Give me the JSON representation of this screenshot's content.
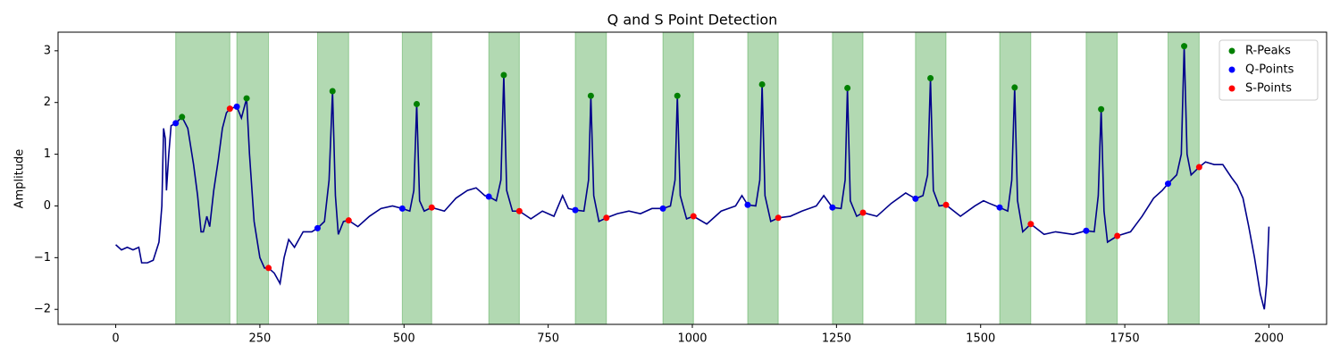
{
  "chart_data": {
    "type": "line",
    "title": "Q and S Point Detection",
    "ylabel": "Amplitude",
    "color": "#00008b",
    "x": [
      0,
      10,
      20,
      30,
      40,
      45,
      55,
      65,
      75,
      80,
      83,
      86,
      88,
      92,
      96,
      104,
      115,
      125,
      135,
      142,
      148,
      152,
      158,
      163,
      170,
      178,
      185,
      192,
      198,
      210,
      218,
      227,
      232,
      240,
      250,
      258,
      265,
      275,
      285,
      292,
      300,
      310,
      325,
      340,
      350,
      362,
      370,
      376,
      381,
      386,
      395,
      404,
      420,
      440,
      460,
      480,
      497,
      510,
      517,
      522,
      527,
      535,
      548,
      570,
      590,
      610,
      625,
      640,
      647,
      660,
      668,
      673,
      678,
      688,
      700,
      720,
      740,
      760,
      775,
      785,
      797,
      812,
      820,
      824,
      829,
      838,
      851,
      870,
      890,
      910,
      930,
      949,
      962,
      970,
      974,
      979,
      990,
      1002,
      1025,
      1050,
      1075,
      1086,
      1096,
      1110,
      1117,
      1121,
      1126,
      1136,
      1149,
      1170,
      1190,
      1215,
      1228,
      1243,
      1258,
      1265,
      1269,
      1274,
      1285,
      1296,
      1320,
      1345,
      1370,
      1387,
      1400,
      1408,
      1413,
      1418,
      1428,
      1440,
      1465,
      1490,
      1505,
      1515,
      1533,
      1547,
      1554,
      1559,
      1564,
      1573,
      1587,
      1610,
      1630,
      1660,
      1683,
      1697,
      1704,
      1709,
      1714,
      1720,
      1737,
      1760,
      1780,
      1800,
      1815,
      1825,
      1840,
      1848,
      1853,
      1858,
      1865,
      1879,
      1890,
      1905,
      1920,
      1935,
      1945,
      1955,
      1965,
      1975,
      1985,
      1992,
      1996,
      2000
    ],
    "values": [
      -0.75,
      -0.85,
      -0.8,
      -0.85,
      -0.8,
      -1.1,
      -1.1,
      -1.05,
      -0.7,
      0,
      1.5,
      1.3,
      0.3,
      1.0,
      1.55,
      1.6,
      1.72,
      1.5,
      0.8,
      0.2,
      -0.5,
      -0.5,
      -0.2,
      -0.4,
      0.3,
      0.9,
      1.5,
      1.8,
      1.88,
      1.92,
      1.7,
      2.08,
      1.0,
      -0.3,
      -1.0,
      -1.2,
      -1.2,
      -1.3,
      -1.5,
      -1.0,
      -0.65,
      -0.8,
      -0.5,
      -0.5,
      -0.43,
      -0.3,
      0.5,
      2.22,
      0.2,
      -0.55,
      -0.3,
      -0.28,
      -0.4,
      -0.2,
      -0.05,
      0.0,
      -0.05,
      -0.1,
      0.3,
      1.97,
      0.1,
      -0.1,
      -0.03,
      -0.1,
      0.15,
      0.3,
      0.35,
      0.2,
      0.18,
      0.1,
      0.5,
      2.53,
      0.3,
      -0.1,
      -0.1,
      -0.25,
      -0.1,
      -0.2,
      0.2,
      -0.05,
      -0.08,
      -0.1,
      0.5,
      2.13,
      0.2,
      -0.3,
      -0.23,
      -0.15,
      -0.1,
      -0.15,
      -0.05,
      -0.05,
      0.0,
      0.5,
      2.13,
      0.2,
      -0.25,
      -0.2,
      -0.35,
      -0.1,
      0.0,
      0.2,
      0.02,
      0.0,
      0.5,
      2.35,
      0.2,
      -0.3,
      -0.23,
      -0.2,
      -0.1,
      0.0,
      0.2,
      -0.03,
      -0.05,
      0.5,
      2.28,
      0.1,
      -0.2,
      -0.13,
      -0.2,
      0.05,
      0.25,
      0.14,
      0.2,
      0.6,
      2.47,
      0.3,
      0.0,
      0.02,
      -0.2,
      0.0,
      0.1,
      0.05,
      -0.03,
      -0.1,
      0.5,
      2.29,
      0.1,
      -0.5,
      -0.35,
      -0.55,
      -0.5,
      -0.55,
      -0.48,
      -0.5,
      0.2,
      1.87,
      -0.1,
      -0.7,
      -0.58,
      -0.5,
      -0.2,
      0.15,
      0.3,
      0.43,
      0.6,
      1.0,
      3.09,
      1.0,
      0.6,
      0.75,
      0.85,
      0.8,
      0.8,
      0.55,
      0.4,
      0.15,
      -0.4,
      -1.0,
      -1.7,
      -2.0,
      -1.5,
      -0.4
    ],
    "regions": [
      [
        104,
        198
      ],
      [
        210,
        265
      ],
      [
        350,
        404
      ],
      [
        497,
        548
      ],
      [
        647,
        700
      ],
      [
        797,
        851
      ],
      [
        949,
        1002
      ],
      [
        1096,
        1149
      ],
      [
        1243,
        1296
      ],
      [
        1387,
        1440
      ],
      [
        1533,
        1587
      ],
      [
        1683,
        1737
      ],
      [
        1825,
        1879
      ]
    ],
    "region_color": "#008000",
    "markers": [
      {
        "name": "R-Peaks",
        "color": "#008000",
        "x": [
          115,
          227,
          376,
          522,
          673,
          824,
          974,
          1121,
          1269,
          1413,
          1559,
          1709,
          1853
        ],
        "values": [
          1.72,
          2.08,
          2.22,
          1.97,
          2.53,
          2.13,
          2.13,
          2.35,
          2.28,
          2.47,
          2.29,
          1.87,
          3.09
        ]
      },
      {
        "name": "Q-Points",
        "color": "#0000ff",
        "x": [
          104,
          210,
          350,
          497,
          647,
          797,
          949,
          1096,
          1243,
          1387,
          1533,
          1683,
          1825
        ],
        "values": [
          1.6,
          1.92,
          -0.43,
          -0.05,
          0.18,
          -0.08,
          -0.05,
          0.02,
          -0.03,
          0.14,
          -0.03,
          -0.48,
          0.43
        ]
      },
      {
        "name": "S-Points",
        "color": "#ff0000",
        "x": [
          198,
          265,
          404,
          548,
          700,
          851,
          1002,
          1149,
          1296,
          1440,
          1587,
          1737,
          1879
        ],
        "values": [
          1.88,
          -1.2,
          -0.28,
          -0.03,
          -0.1,
          -0.23,
          -0.2,
          -0.23,
          -0.13,
          0.02,
          -0.35,
          -0.58,
          0.75
        ]
      }
    ],
    "xlim": [
      -100,
      2100
    ],
    "ylim": [
      -2.29,
      3.36
    ],
    "xticks": [
      0,
      250,
      500,
      750,
      1000,
      1250,
      1500,
      1750,
      2000
    ],
    "yticks": [
      {
        "value": -2,
        "label": "−2"
      },
      {
        "value": -1,
        "label": "−1"
      },
      0,
      1,
      2,
      3
    ],
    "legend": "upper right"
  }
}
